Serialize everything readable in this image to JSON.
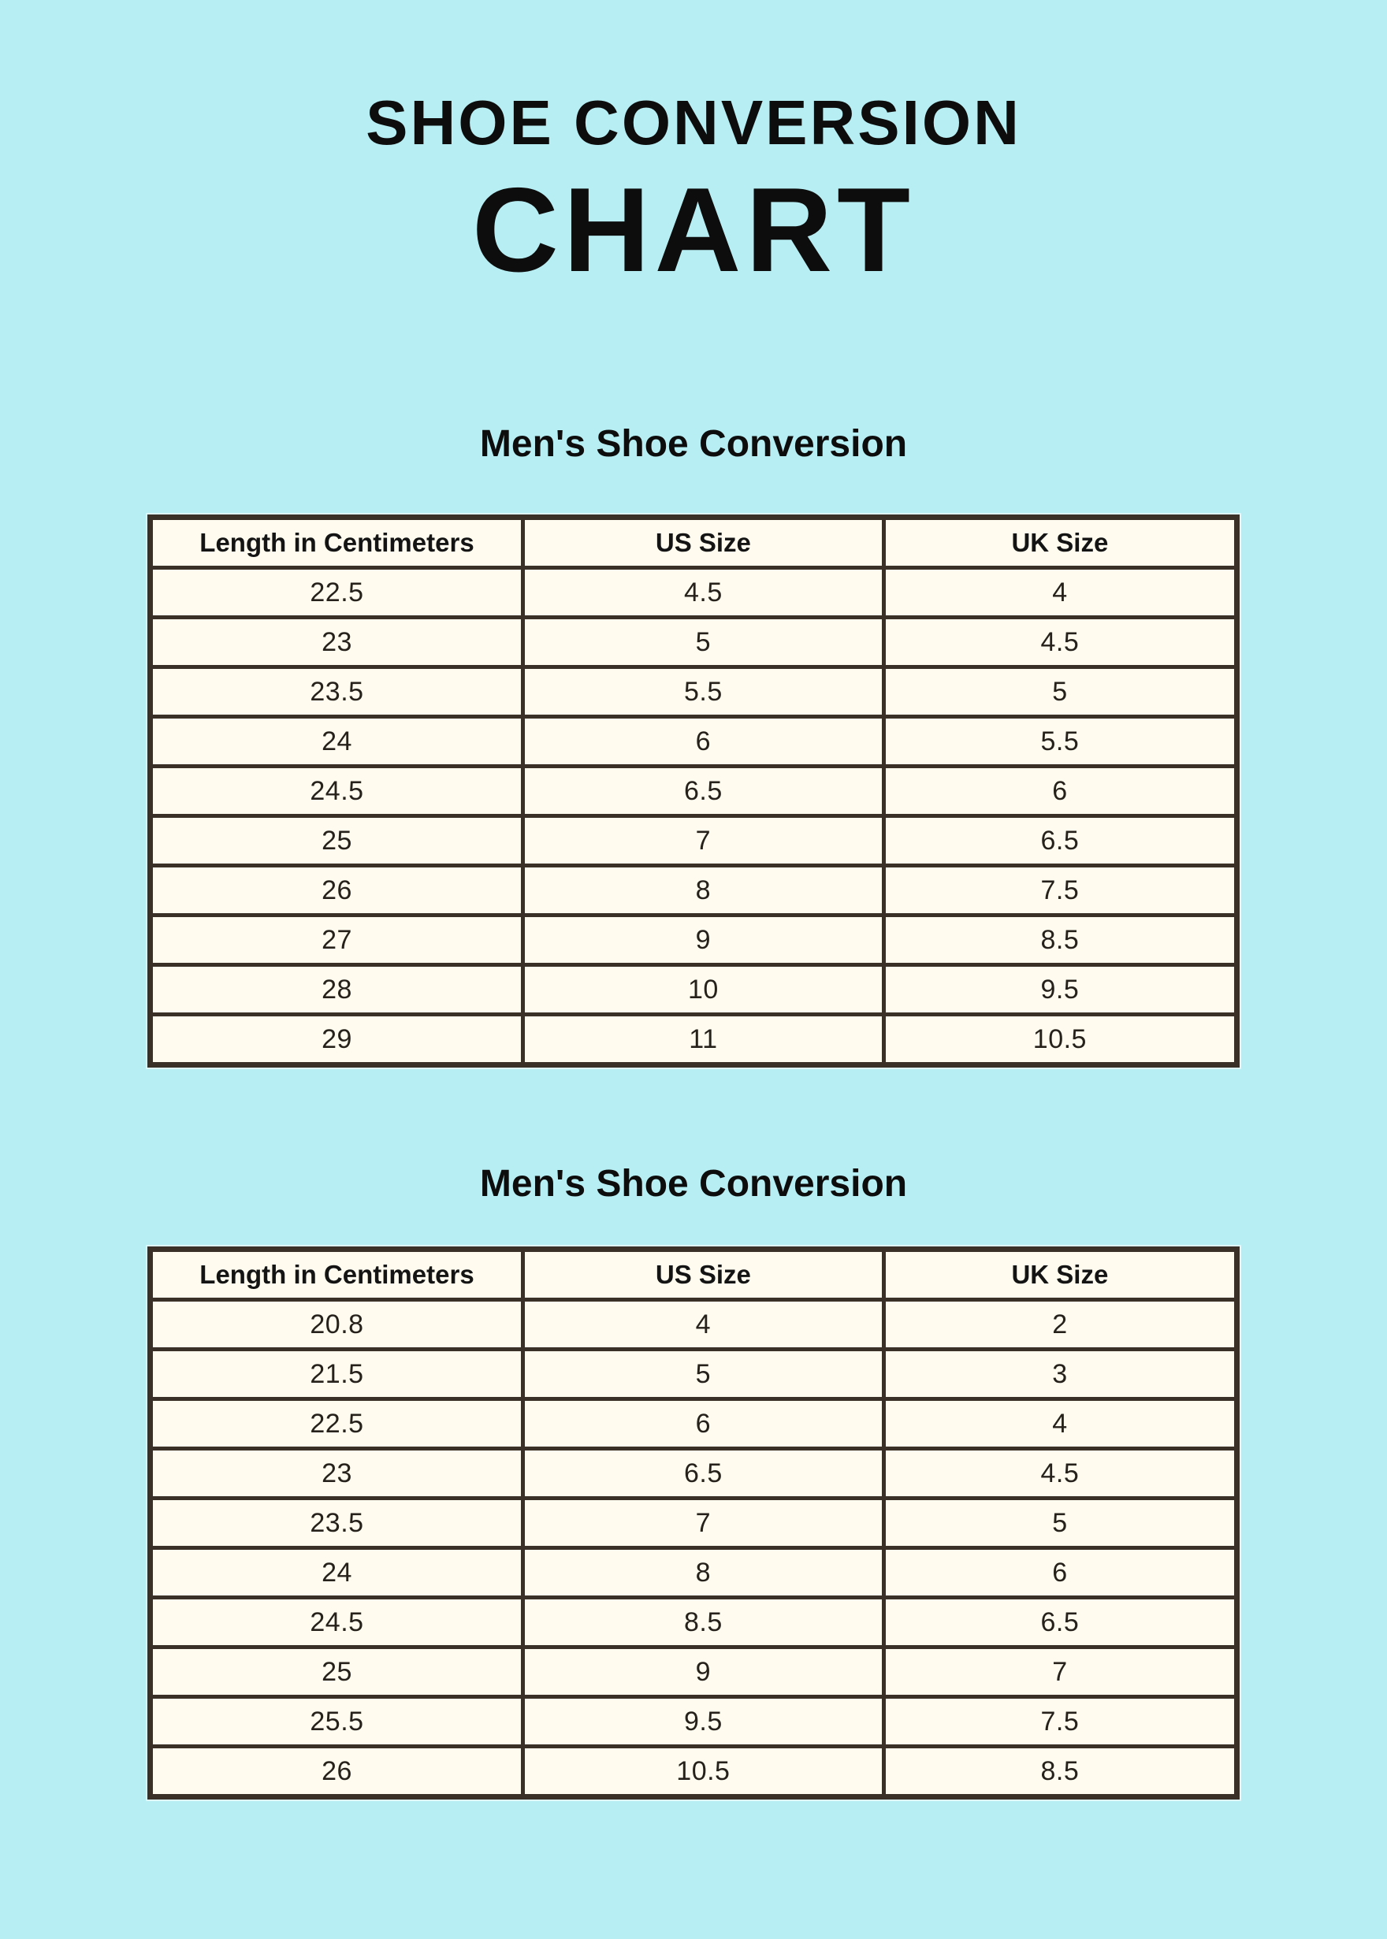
{
  "page": {
    "title_line1": "SHOE CONVERSION",
    "title_line2": "CHART"
  },
  "colors": {
    "background": "#B7EEF3",
    "table_cell_bg": "#FFFBEE",
    "table_border": "#3B3027",
    "title_text": "#0D0D0D"
  },
  "tables": [
    {
      "section_title": "Men's Shoe Conversion",
      "columns": [
        "Length in Centimeters",
        "US Size",
        "UK Size"
      ],
      "rows": [
        [
          "22.5",
          "4.5",
          "4"
        ],
        [
          "23",
          "5",
          "4.5"
        ],
        [
          "23.5",
          "5.5",
          "5"
        ],
        [
          "24",
          "6",
          "5.5"
        ],
        [
          "24.5",
          "6.5",
          "6"
        ],
        [
          "25",
          "7",
          "6.5"
        ],
        [
          "26",
          "8",
          "7.5"
        ],
        [
          "27",
          "9",
          "8.5"
        ],
        [
          "28",
          "10",
          "9.5"
        ],
        [
          "29",
          "11",
          "10.5"
        ]
      ]
    },
    {
      "section_title": "Men's Shoe Conversion",
      "columns": [
        "Length in Centimeters",
        "US Size",
        "UK Size"
      ],
      "rows": [
        [
          "20.8",
          "4",
          "2"
        ],
        [
          "21.5",
          "5",
          "3"
        ],
        [
          "22.5",
          "6",
          "4"
        ],
        [
          "23",
          "6.5",
          "4.5"
        ],
        [
          "23.5",
          "7",
          "5"
        ],
        [
          "24",
          "8",
          "6"
        ],
        [
          "24.5",
          "8.5",
          "6.5"
        ],
        [
          "25",
          "9",
          "7"
        ],
        [
          "25.5",
          "9.5",
          "7.5"
        ],
        [
          "26",
          "10.5",
          "8.5"
        ]
      ]
    }
  ]
}
